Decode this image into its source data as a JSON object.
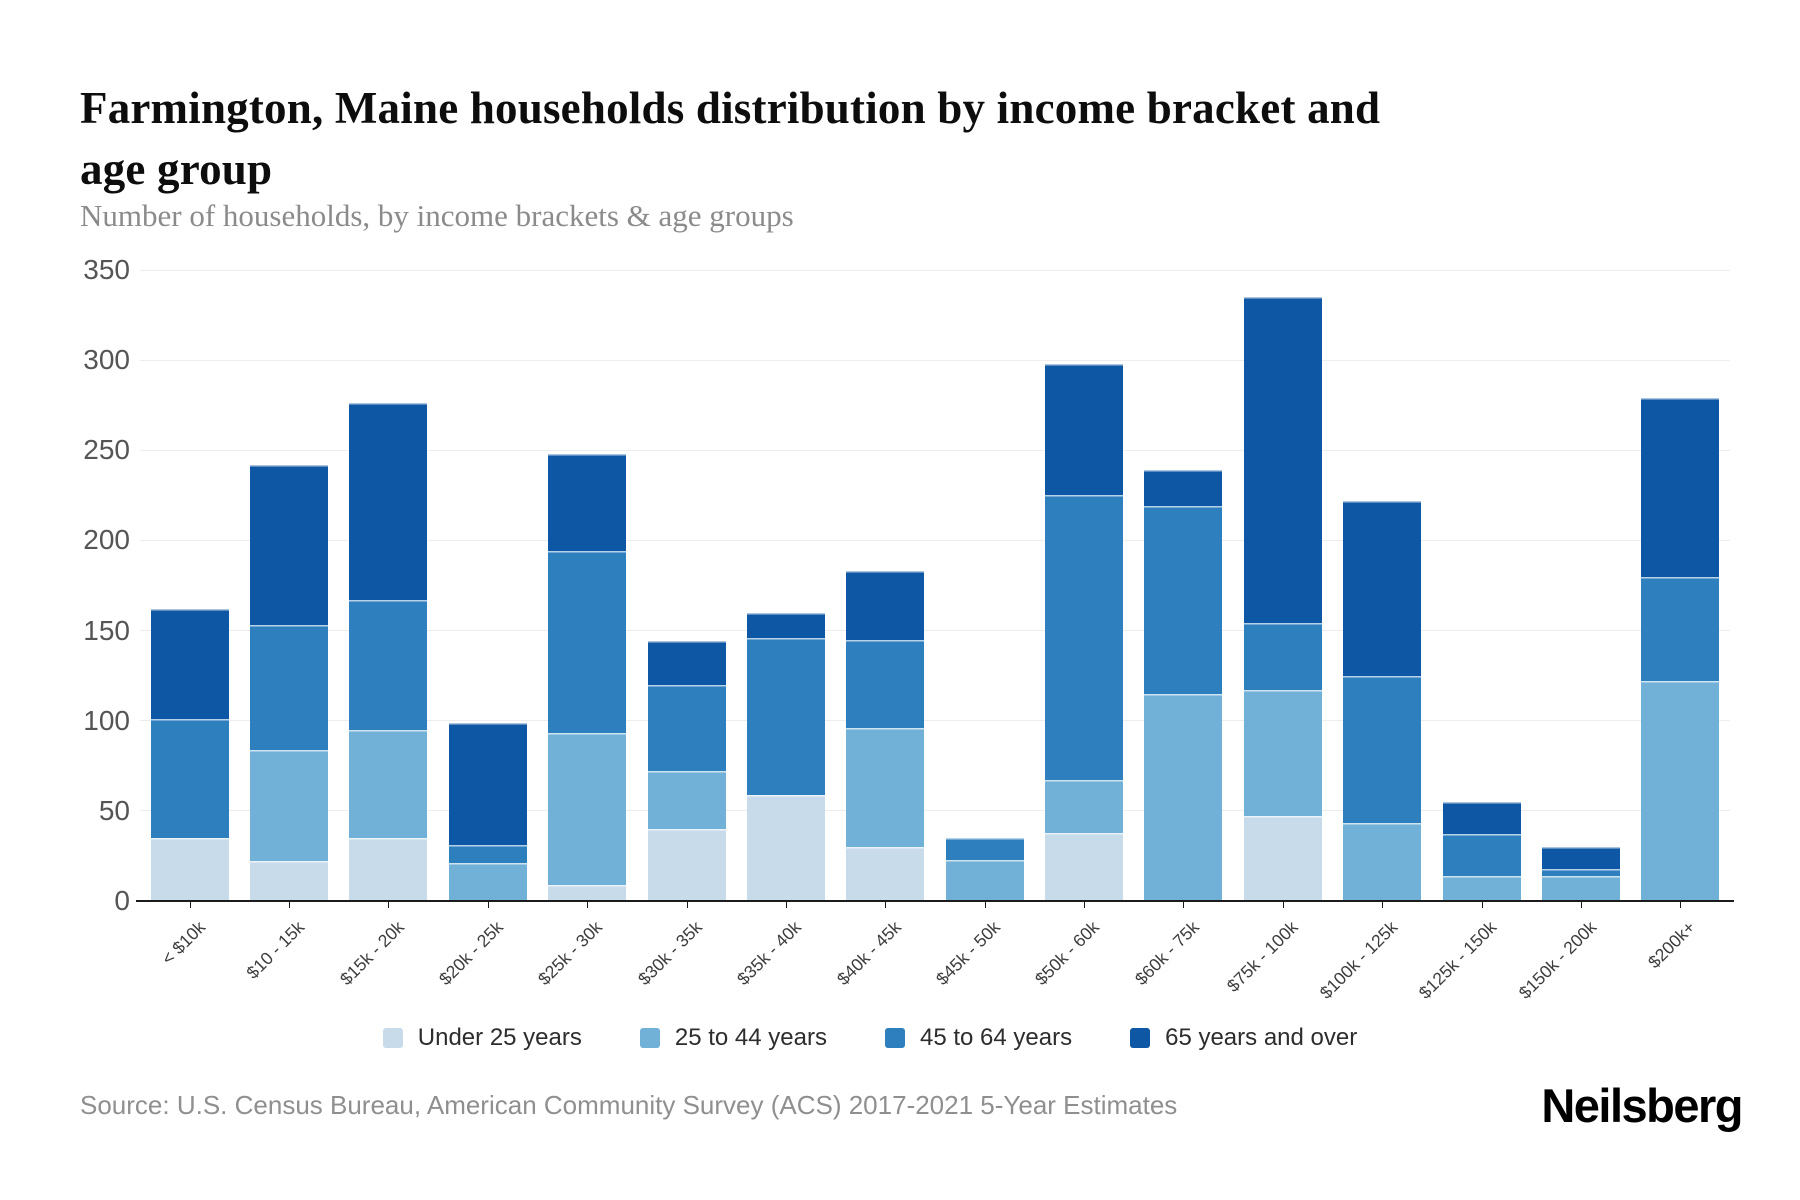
{
  "header": {
    "title_line1": "Farmington, Maine households distribution by income bracket and",
    "title_line2": "age group",
    "subtitle": "Number of households, by income brackets & age groups"
  },
  "source": {
    "text": "Source: U.S. Census Bureau, American Community Survey (ACS) 2017-2021 5-Year Estimates"
  },
  "branding": {
    "logo_text": "Neilsberg"
  },
  "colors": {
    "under_25": "#c7dbeb",
    "25_to_44": "#72b1d7",
    "45_to_64": "#2e7fbe",
    "65_and_over": "#0d57a5",
    "gridline": "#ededed",
    "axis": "#1b1b1b"
  },
  "chart_data": {
    "type": "bar",
    "stacked": true,
    "title": "Farmington, Maine households distribution by income bracket and age group",
    "subtitle": "Number of households, by income brackets & age groups",
    "xlabel": "",
    "ylabel": "Number of households",
    "ylim": [
      0,
      350
    ],
    "yticks": [
      0,
      50,
      100,
      150,
      200,
      250,
      300,
      350
    ],
    "grid": true,
    "legend_position": "bottom",
    "categories": [
      "< $10k",
      "$10 - 15k",
      "$15k - 20k",
      "$20k - 25k",
      "$25k - 30k",
      "$30k - 35k",
      "$35k - 40k",
      "$40k - 45k",
      "$45k - 50k",
      "$50k - 60k",
      "$60k - 75k",
      "$75k - 100k",
      "$100k - 125k",
      "$125k - 150k",
      "$150k - 200k",
      "$200k+"
    ],
    "series": [
      {
        "name": "Under 25 years",
        "color": "#c7dbeb",
        "values": [
          35,
          22,
          35,
          0,
          9,
          40,
          59,
          30,
          0,
          38,
          0,
          47,
          0,
          0,
          0,
          0
        ]
      },
      {
        "name": "25 to 44 years",
        "color": "#72b1d7",
        "values": [
          0,
          62,
          60,
          21,
          84,
          32,
          0,
          66,
          23,
          29,
          115,
          70,
          43,
          14,
          14,
          122
        ]
      },
      {
        "name": "45 to 64 years",
        "color": "#2e7fbe",
        "values": [
          66,
          69,
          72,
          10,
          101,
          48,
          87,
          49,
          12,
          158,
          104,
          37,
          82,
          23,
          4,
          58
        ]
      },
      {
        "name": "65 years and over",
        "color": "#0d57a5",
        "values": [
          61,
          89,
          109,
          68,
          54,
          24,
          14,
          38,
          0,
          73,
          20,
          181,
          97,
          18,
          12,
          99
        ]
      }
    ],
    "totals": [
      162,
      242,
      276,
      99,
      248,
      144,
      160,
      183,
      35,
      298,
      239,
      335,
      222,
      55,
      30,
      279
    ]
  }
}
